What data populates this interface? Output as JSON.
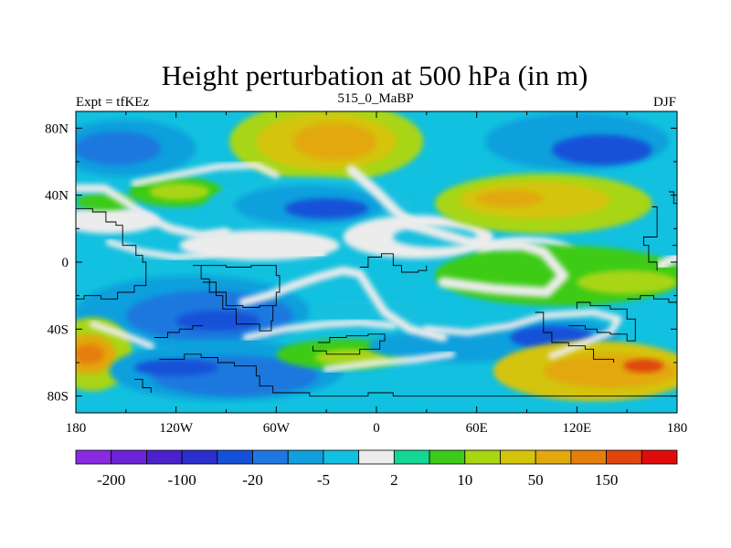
{
  "chart_data": {
    "type": "heatmap",
    "title": "Height perturbation at 500 hPa (in m)",
    "subtitle_left": "Expt = tfKEz",
    "subtitle_center": "515_0_MaBP",
    "subtitle_right": "DJF",
    "xlim": [
      -180,
      180
    ],
    "ylim": [
      -90,
      90
    ],
    "x_ticks": [
      {
        "value": -180,
        "label": "180"
      },
      {
        "value": -120,
        "label": "120W"
      },
      {
        "value": -60,
        "label": "60W"
      },
      {
        "value": 0,
        "label": "0"
      },
      {
        "value": 60,
        "label": "60E"
      },
      {
        "value": 120,
        "label": "120E"
      },
      {
        "value": 180,
        "label": "180"
      }
    ],
    "y_ticks": [
      {
        "value": 80,
        "label": "80N"
      },
      {
        "value": 40,
        "label": "40N"
      },
      {
        "value": 0,
        "label": "0"
      },
      {
        "value": -40,
        "label": "40S"
      },
      {
        "value": -80,
        "label": "80S"
      }
    ],
    "colorbar": {
      "colors": [
        "#8a2be2",
        "#6a24d6",
        "#4a22cc",
        "#2b2fd0",
        "#1551d8",
        "#1f78de",
        "#11a0dd",
        "#12c0df",
        "#ececec",
        "#15d694",
        "#3ccb18",
        "#a8d612",
        "#d4c40c",
        "#e2a80c",
        "#e67e0c",
        "#e0460c",
        "#e00c0c"
      ],
      "tick_labels": [
        {
          "after_box": 1,
          "label": "-200"
        },
        {
          "after_box": 3,
          "label": "-100"
        },
        {
          "after_box": 5,
          "label": "-20"
        },
        {
          "after_box": 7,
          "label": "-5"
        },
        {
          "after_box": 9,
          "label": "2"
        },
        {
          "after_box": 11,
          "label": "10"
        },
        {
          "after_box": 13,
          "label": "50"
        },
        {
          "after_box": 15,
          "label": "150"
        }
      ]
    },
    "field_blobs": [
      {
        "lon": -150,
        "lat": 68,
        "rx": 42,
        "ry": 17,
        "c": 6
      },
      {
        "lon": -155,
        "lat": 68,
        "rx": 26,
        "ry": 10,
        "c": 5
      },
      {
        "lon": -160,
        "lat": 25,
        "rx": 30,
        "ry": 8,
        "c": 8
      },
      {
        "lon": -162,
        "lat": 36,
        "rx": 18,
        "ry": 5,
        "c": 10
      },
      {
        "lon": -120,
        "lat": 42,
        "rx": 28,
        "ry": 9,
        "c": 10
      },
      {
        "lon": -118,
        "lat": 42,
        "rx": 18,
        "ry": 5,
        "c": 11
      },
      {
        "lon": -30,
        "lat": 72,
        "rx": 58,
        "ry": 24,
        "c": 11
      },
      {
        "lon": -30,
        "lat": 72,
        "rx": 42,
        "ry": 17,
        "c": 12
      },
      {
        "lon": -25,
        "lat": 72,
        "rx": 25,
        "ry": 11,
        "c": 13
      },
      {
        "lon": -40,
        "lat": 34,
        "rx": 62,
        "ry": 17,
        "c": 7
      },
      {
        "lon": -40,
        "lat": 34,
        "rx": 45,
        "ry": 12,
        "c": 6
      },
      {
        "lon": -30,
        "lat": 32,
        "rx": 25,
        "ry": 6,
        "c": 4
      },
      {
        "lon": -70,
        "lat": 10,
        "rx": 48,
        "ry": 9,
        "c": 8
      },
      {
        "lon": 25,
        "lat": 15,
        "rx": 45,
        "ry": 13,
        "c": 8
      },
      {
        "lon": 35,
        "lat": 15,
        "rx": 25,
        "ry": 6,
        "c": 7
      },
      {
        "lon": 120,
        "lat": 72,
        "rx": 55,
        "ry": 17,
        "c": 6
      },
      {
        "lon": 135,
        "lat": 67,
        "rx": 30,
        "ry": 9,
        "c": 4
      },
      {
        "lon": 100,
        "lat": 35,
        "rx": 65,
        "ry": 18,
        "c": 11
      },
      {
        "lon": 95,
        "lat": 37,
        "rx": 45,
        "ry": 11,
        "c": 12
      },
      {
        "lon": 80,
        "lat": 38,
        "rx": 20,
        "ry": 5,
        "c": 13
      },
      {
        "lon": 90,
        "lat": 5,
        "rx": 30,
        "ry": 10,
        "c": 8
      },
      {
        "lon": 90,
        "lat": 5,
        "rx": 22,
        "ry": 6,
        "c": 7
      },
      {
        "lon": 110,
        "lat": -8,
        "rx": 75,
        "ry": 18,
        "c": 10
      },
      {
        "lon": 150,
        "lat": -12,
        "rx": 30,
        "ry": 7,
        "c": 11
      },
      {
        "lon": -110,
        "lat": -30,
        "rx": 70,
        "ry": 22,
        "c": 6
      },
      {
        "lon": -100,
        "lat": -32,
        "rx": 50,
        "ry": 15,
        "c": 5
      },
      {
        "lon": -95,
        "lat": -35,
        "rx": 25,
        "ry": 6,
        "c": 4
      },
      {
        "lon": -5,
        "lat": -30,
        "rx": 35,
        "ry": 8,
        "c": 7
      },
      {
        "lon": -170,
        "lat": -55,
        "rx": 24,
        "ry": 22,
        "c": 11
      },
      {
        "lon": -172,
        "lat": -55,
        "rx": 16,
        "ry": 12,
        "c": 13
      },
      {
        "lon": -172,
        "lat": -55,
        "rx": 9,
        "ry": 6,
        "c": 14
      },
      {
        "lon": -90,
        "lat": -65,
        "rx": 70,
        "ry": 18,
        "c": 6
      },
      {
        "lon": -85,
        "lat": -68,
        "rx": 50,
        "ry": 12,
        "c": 5
      },
      {
        "lon": -120,
        "lat": -63,
        "rx": 25,
        "ry": 5,
        "c": 4
      },
      {
        "lon": -20,
        "lat": -55,
        "rx": 40,
        "ry": 9,
        "c": 10
      },
      {
        "lon": -15,
        "lat": -57,
        "rx": 22,
        "ry": 5,
        "c": 11
      },
      {
        "lon": 50,
        "lat": -50,
        "rx": 55,
        "ry": 10,
        "c": 6
      },
      {
        "lon": 105,
        "lat": -45,
        "rx": 40,
        "ry": 12,
        "c": 6
      },
      {
        "lon": 105,
        "lat": -45,
        "rx": 25,
        "ry": 7,
        "c": 4
      },
      {
        "lon": 130,
        "lat": -65,
        "rx": 60,
        "ry": 18,
        "c": 12
      },
      {
        "lon": 140,
        "lat": -65,
        "rx": 40,
        "ry": 10,
        "c": 13
      },
      {
        "lon": 160,
        "lat": -62,
        "rx": 12,
        "ry": 4,
        "c": 15
      }
    ],
    "white_bands": [
      {
        "points": [
          [
            -145,
            47
          ],
          [
            -120,
            52
          ],
          [
            -95,
            57
          ],
          [
            -72,
            58
          ],
          [
            -60,
            52
          ]
        ],
        "w": 4
      },
      {
        "points": [
          [
            -180,
            44
          ],
          [
            -163,
            44
          ],
          [
            -150,
            36
          ],
          [
            -138,
            27
          ],
          [
            -123,
            20
          ],
          [
            -105,
            16
          ],
          [
            -90,
            18
          ]
        ],
        "w": 5
      },
      {
        "points": [
          [
            -160,
            12
          ],
          [
            -140,
            6
          ],
          [
            -120,
            3
          ],
          [
            -105,
            4
          ],
          [
            -95,
            6
          ]
        ],
        "w": 4
      },
      {
        "points": [
          [
            -90,
            6
          ],
          [
            -70,
            5
          ],
          [
            -50,
            4
          ],
          [
            -35,
            4
          ]
        ],
        "w": 9
      },
      {
        "points": [
          [
            -15,
            55
          ],
          [
            0,
            42
          ],
          [
            12,
            30
          ],
          [
            22,
            22
          ],
          [
            35,
            18
          ],
          [
            55,
            12
          ],
          [
            70,
            10
          ],
          [
            88,
            10
          ],
          [
            100,
            6
          ],
          [
            112,
            -8
          ],
          [
            102,
            -18
          ],
          [
            85,
            -17
          ],
          [
            70,
            -16
          ],
          [
            55,
            -14
          ],
          [
            40,
            -12
          ]
        ],
        "w": 6
      },
      {
        "points": [
          [
            -80,
            -24
          ],
          [
            -65,
            -20
          ],
          [
            -50,
            -14
          ],
          [
            -35,
            -9
          ],
          [
            -20,
            -5
          ],
          [
            -10,
            -7
          ],
          [
            -5,
            -15
          ],
          [
            5,
            -30
          ],
          [
            20,
            -40
          ],
          [
            40,
            -45
          ]
        ],
        "w": 5
      },
      {
        "points": [
          [
            -78,
            -45
          ],
          [
            -55,
            -40
          ],
          [
            -30,
            -37
          ],
          [
            -10,
            -36
          ],
          [
            10,
            -38
          ]
        ],
        "w": 4
      },
      {
        "points": [
          [
            -30,
            -64
          ],
          [
            0,
            -60
          ],
          [
            25,
            -58
          ],
          [
            45,
            -55
          ]
        ],
        "w": 4
      },
      {
        "points": [
          [
            30,
            -40
          ],
          [
            55,
            -42
          ],
          [
            80,
            -38
          ],
          [
            100,
            -32
          ],
          [
            130,
            -30
          ],
          [
            145,
            -34
          ],
          [
            140,
            -42
          ],
          [
            125,
            -48
          ],
          [
            105,
            -56
          ]
        ],
        "w": 4
      },
      {
        "points": [
          [
            -170,
            -37
          ],
          [
            -150,
            -44
          ],
          [
            -135,
            -50
          ]
        ],
        "w": 4
      },
      {
        "points": [
          [
            170,
            -2
          ],
          [
            180,
            3
          ]
        ],
        "w": 6
      }
    ],
    "coastlines": [
      [
        [
          -180,
          -22
        ],
        [
          -175,
          -20
        ],
        [
          -165,
          -22
        ],
        [
          -155,
          -18
        ],
        [
          -145,
          -14
        ],
        [
          -138,
          -13
        ]
      ],
      [
        [
          -180,
          32
        ],
        [
          -170,
          30
        ],
        [
          -162,
          28
        ],
        [
          -162,
          24
        ],
        [
          -156,
          22
        ],
        [
          -152,
          16
        ],
        [
          -152,
          10
        ],
        [
          -144,
          4
        ],
        [
          -140,
          0
        ],
        [
          -138,
          -13
        ]
      ],
      [
        [
          -110,
          -2
        ],
        [
          -105,
          -10
        ],
        [
          -100,
          -18
        ],
        [
          -90,
          -26
        ],
        [
          -80,
          -27
        ],
        [
          -70,
          -26
        ],
        [
          -60,
          -18
        ],
        [
          -58,
          -8
        ],
        [
          -60,
          -2
        ],
        [
          -75,
          -3
        ],
        [
          -90,
          -2
        ],
        [
          -110,
          -2
        ]
      ],
      [
        [
          -104,
          -12
        ],
        [
          -96,
          -20
        ],
        [
          -92,
          -28
        ],
        [
          -84,
          -37
        ],
        [
          -70,
          -41
        ],
        [
          -63,
          -35
        ],
        [
          -62,
          -26
        ]
      ],
      [
        [
          -133,
          -45
        ],
        [
          -125,
          -42
        ],
        [
          -118,
          -40
        ],
        [
          -110,
          -38
        ],
        [
          -104,
          -38
        ]
      ],
      [
        [
          -130,
          -58
        ],
        [
          -115,
          -55
        ],
        [
          -105,
          -57
        ],
        [
          -95,
          -60
        ],
        [
          -85,
          -62
        ],
        [
          -72,
          -68
        ],
        [
          -70,
          -74
        ],
        [
          -62,
          -78
        ],
        [
          -40,
          -80
        ],
        [
          -5,
          -78
        ],
        [
          10,
          -80
        ],
        [
          40,
          -80
        ],
        [
          70,
          -80
        ],
        [
          110,
          -80
        ],
        [
          160,
          -80
        ],
        [
          180,
          -80
        ]
      ],
      [
        [
          -145,
          -70
        ],
        [
          -140,
          -75
        ],
        [
          -135,
          -78
        ]
      ],
      [
        [
          -35,
          -48
        ],
        [
          -28,
          -45
        ],
        [
          -18,
          -44
        ],
        [
          -5,
          -43
        ],
        [
          5,
          -47
        ],
        [
          2,
          -52
        ],
        [
          -10,
          -55
        ],
        [
          -20,
          -55
        ],
        [
          -30,
          -53
        ],
        [
          -38,
          -50
        ]
      ],
      [
        [
          -10,
          -3
        ],
        [
          -5,
          3
        ],
        [
          3,
          5
        ],
        [
          10,
          -2
        ],
        [
          15,
          -6
        ],
        [
          25,
          -5
        ],
        [
          30,
          -2
        ]
      ],
      [
        [
          95,
          -30
        ],
        [
          100,
          -42
        ],
        [
          105,
          -48
        ],
        [
          115,
          -50
        ],
        [
          125,
          -52
        ],
        [
          130,
          -58
        ],
        [
          142,
          -60
        ]
      ],
      [
        [
          115,
          -38
        ],
        [
          125,
          -40
        ],
        [
          132,
          -42
        ],
        [
          140,
          -43
        ],
        [
          150,
          -47
        ],
        [
          155,
          -42
        ],
        [
          155,
          -34
        ],
        [
          150,
          -28
        ],
        [
          140,
          -26
        ],
        [
          128,
          -24
        ],
        [
          120,
          -28
        ]
      ],
      [
        [
          150,
          -22
        ],
        [
          158,
          -20
        ],
        [
          166,
          -22
        ],
        [
          175,
          -24
        ],
        [
          180,
          -22
        ]
      ],
      [
        [
          165,
          33
        ],
        [
          168,
          25
        ],
        [
          168,
          15
        ],
        [
          160,
          10
        ],
        [
          163,
          0
        ],
        [
          168,
          -5
        ]
      ],
      [
        [
          175,
          42
        ],
        [
          178,
          35
        ],
        [
          180,
          30
        ]
      ],
      [
        [
          177,
          10
        ],
        [
          180,
          6
        ]
      ]
    ]
  }
}
